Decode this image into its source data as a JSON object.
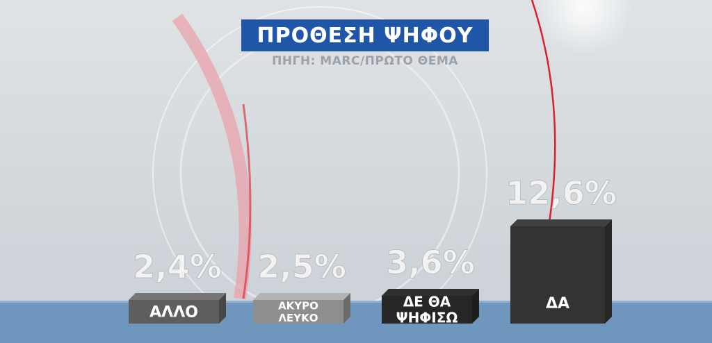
{
  "header": {
    "title": "ΠΡΟΘΕΣΗ ΨΗΦΟΥ",
    "source": "ΠΗΓΗ: MARC/ΠΡΩΤΟ ΘΕΜΑ"
  },
  "colors": {
    "title_bg": "#1f56a8",
    "floor": "#6f96bd",
    "accent_red": "#d8202e"
  },
  "chart_data": {
    "type": "bar",
    "title": "ΠΡΟΘΕΣΗ ΨΗΦΟΥ",
    "subtitle": "ΠΗΓΗ: MARC/ΠΡΩΤΟ ΘΕΜΑ",
    "categories": [
      {
        "lines": [
          "ΑΛΛΟ"
        ]
      },
      {
        "lines": [
          "ΑΚΥΡΟ",
          "ΛΕΥΚΟ"
        ]
      },
      {
        "lines": [
          "ΔΕ ΘΑ",
          "ΨΗΦΙΣΩ"
        ]
      },
      {
        "lines": [
          "ΔΑ"
        ]
      }
    ],
    "values": [
      2.4,
      2.5,
      3.6,
      12.6
    ],
    "value_labels": [
      "2,4%",
      "2,5%",
      "3,6%",
      "12,6%"
    ],
    "bar_colors": [
      "#5e5e5e",
      "#8e8e8e",
      "#262626",
      "#333333"
    ],
    "unit": "%"
  }
}
